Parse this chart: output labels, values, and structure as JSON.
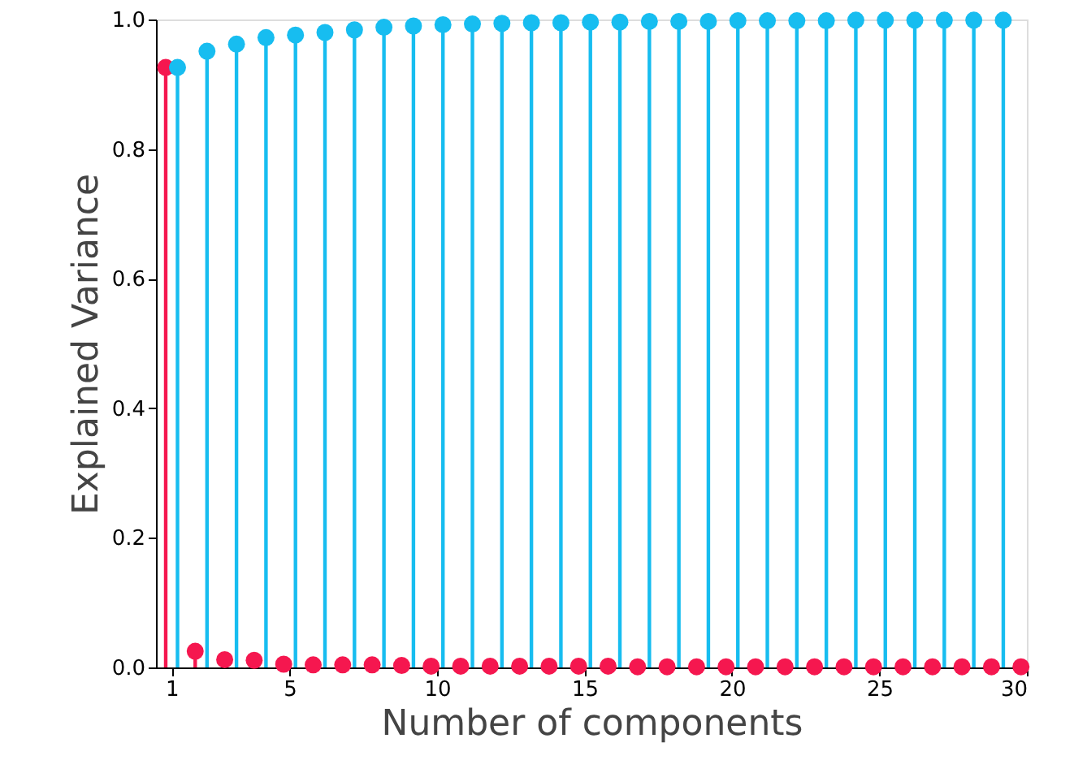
{
  "chart_data": {
    "type": "lollipop",
    "xlabel": "Number of components",
    "ylabel": "Explained Variance",
    "xlim": [
      0.47,
      30
    ],
    "xticks": [
      1,
      5,
      10,
      15,
      20,
      25,
      30
    ],
    "ylim": [
      0,
      1
    ],
    "yticks": [
      {
        "value": 0,
        "label": "0.0"
      },
      {
        "value": 0.2,
        "label": "0.2"
      },
      {
        "value": 0.4,
        "label": "0.4"
      },
      {
        "value": 0.6,
        "label": "0.6"
      },
      {
        "value": 0.8,
        "label": "0.8"
      },
      {
        "value": 1,
        "label": "1.0"
      }
    ],
    "grid": false,
    "marker": "circle",
    "series": [
      {
        "color": "#f5174f",
        "x": [
          0.8,
          1.8,
          2.8,
          3.8,
          4.8,
          5.8,
          6.8,
          7.8,
          8.8,
          9.8,
          10.8,
          11.8,
          12.8,
          13.8,
          14.8,
          15.8,
          16.8,
          17.8,
          18.8,
          19.8,
          20.8,
          21.8,
          22.8,
          23.8,
          24.8,
          25.8,
          26.8,
          27.8,
          28.8,
          29.8
        ],
        "values": [
          0.926,
          0.025,
          0.012,
          0.011,
          0.005,
          0.004,
          0.004,
          0.004,
          0.003,
          0.002,
          0.002,
          0.002,
          0.002,
          0.002,
          0.002,
          0.002,
          0.001,
          0.001,
          0.001,
          0.001,
          0.001,
          0.001,
          0.001,
          0.001,
          0.001,
          0.001,
          0.001,
          0.001,
          0.001,
          0.001
        ]
      },
      {
        "color": "#17bdf0",
        "x": [
          1.2,
          2.2,
          3.2,
          4.2,
          5.2,
          6.2,
          7.2,
          8.2,
          9.2,
          10.2,
          11.2,
          12.2,
          13.2,
          14.2,
          15.2,
          16.2,
          17.2,
          18.2,
          19.2,
          20.2,
          21.2,
          22.2,
          23.2,
          24.2,
          25.2,
          26.2,
          27.2,
          28.2,
          29.2
        ],
        "values": [
          0.926,
          0.951,
          0.962,
          0.972,
          0.976,
          0.98,
          0.984,
          0.988,
          0.99,
          0.992,
          0.993,
          0.994,
          0.995,
          0.995,
          0.996,
          0.996,
          0.997,
          0.997,
          0.997,
          0.998,
          0.998,
          0.998,
          0.998,
          0.999,
          0.999,
          0.999,
          0.999,
          0.999,
          0.999
        ]
      }
    ]
  }
}
